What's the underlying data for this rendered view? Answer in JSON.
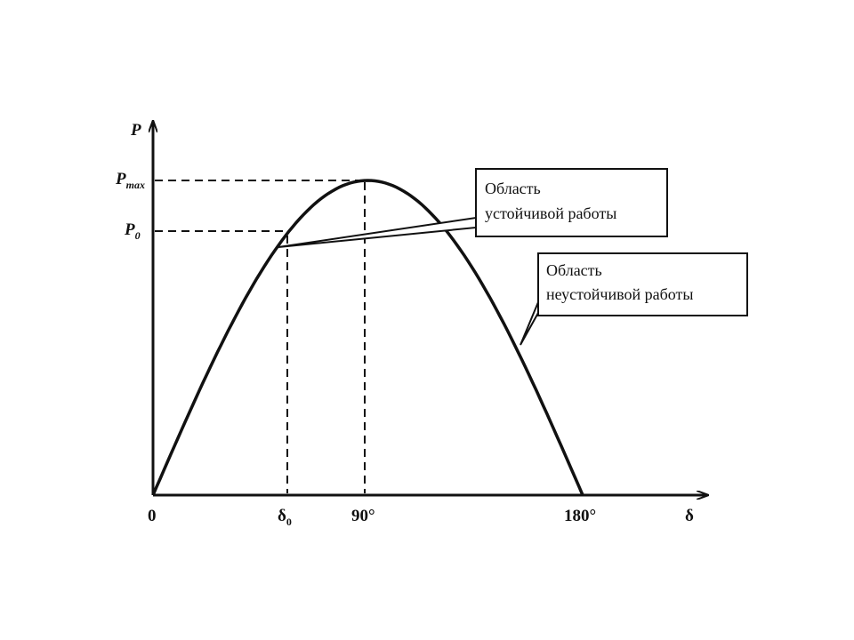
{
  "axes": {
    "y_label": "P",
    "x_label": "δ"
  },
  "y_marks": [
    {
      "main": "P",
      "sub": "max"
    },
    {
      "main": "P",
      "sub": "0"
    }
  ],
  "x_marks": [
    {
      "main": "0"
    },
    {
      "main": "δ",
      "sub": "0"
    },
    {
      "main": "90°"
    },
    {
      "main": "180°"
    }
  ],
  "callouts": [
    {
      "lines": [
        "Область",
        "устойчивой работы"
      ]
    },
    {
      "lines": [
        "Область",
        "неустойчивой работы"
      ]
    }
  ]
}
